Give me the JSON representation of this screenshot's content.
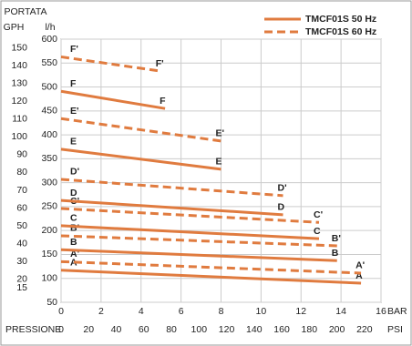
{
  "chart_data": {
    "type": "line",
    "y_title_top": "PORTATA",
    "y2_title": "GPH",
    "y_title": "l/h",
    "x_title": "BAR",
    "x2_title": "PRESSIONE",
    "x2_unit": "PSI",
    "xlim": [
      0,
      16
    ],
    "xticks": [
      0,
      2,
      4,
      6,
      8,
      10,
      12,
      14,
      16
    ],
    "x2lim": [
      0,
      232
    ],
    "x2ticks": [
      0,
      20,
      40,
      60,
      80,
      100,
      120,
      140,
      160,
      180,
      200,
      220
    ],
    "ylim": [
      50,
      600
    ],
    "yticks": [
      50,
      100,
      150,
      200,
      250,
      300,
      350,
      400,
      450,
      500,
      550,
      600
    ],
    "y2lim": [
      7,
      155
    ],
    "y2ticks": [
      15,
      20,
      30,
      40,
      50,
      60,
      70,
      80,
      90,
      100,
      110,
      120,
      130,
      140,
      150
    ],
    "grid": true,
    "color": "#e07b3f",
    "legend": [
      {
        "label": "TMCF01S 50 Hz",
        "style": "solid"
      },
      {
        "label": "TMCF01S 60 Hz",
        "style": "dashed"
      }
    ],
    "series": [
      {
        "name": "A",
        "style": "solid",
        "x": [
          0,
          15
        ],
        "values": [
          117,
          90
        ]
      },
      {
        "name": "A'",
        "style": "dashed",
        "x": [
          0,
          15
        ],
        "values": [
          135,
          111
        ]
      },
      {
        "name": "B",
        "style": "solid",
        "x": [
          0,
          13.8
        ],
        "values": [
          160,
          137
        ]
      },
      {
        "name": "B'",
        "style": "dashed",
        "x": [
          0,
          13.8
        ],
        "values": [
          189,
          168
        ]
      },
      {
        "name": "C",
        "style": "solid",
        "x": [
          0,
          12.9
        ],
        "values": [
          210,
          183
        ]
      },
      {
        "name": "C'",
        "style": "dashed",
        "x": [
          0,
          12.9
        ],
        "values": [
          246,
          217
        ]
      },
      {
        "name": "D",
        "style": "solid",
        "x": [
          0,
          11.1
        ],
        "values": [
          263,
          233
        ]
      },
      {
        "name": "D'",
        "style": "dashed",
        "x": [
          0,
          11.1
        ],
        "values": [
          307,
          273
        ]
      },
      {
        "name": "E",
        "style": "solid",
        "x": [
          0,
          8
        ],
        "values": [
          370,
          328
        ]
      },
      {
        "name": "E'",
        "style": "dashed",
        "x": [
          0,
          8
        ],
        "values": [
          434,
          387
        ]
      },
      {
        "name": "F",
        "style": "solid",
        "x": [
          0,
          5.2
        ],
        "values": [
          491,
          455
        ]
      },
      {
        "name": "F'",
        "style": "dashed",
        "x": [
          0,
          5
        ],
        "values": [
          563,
          533
        ]
      }
    ]
  }
}
